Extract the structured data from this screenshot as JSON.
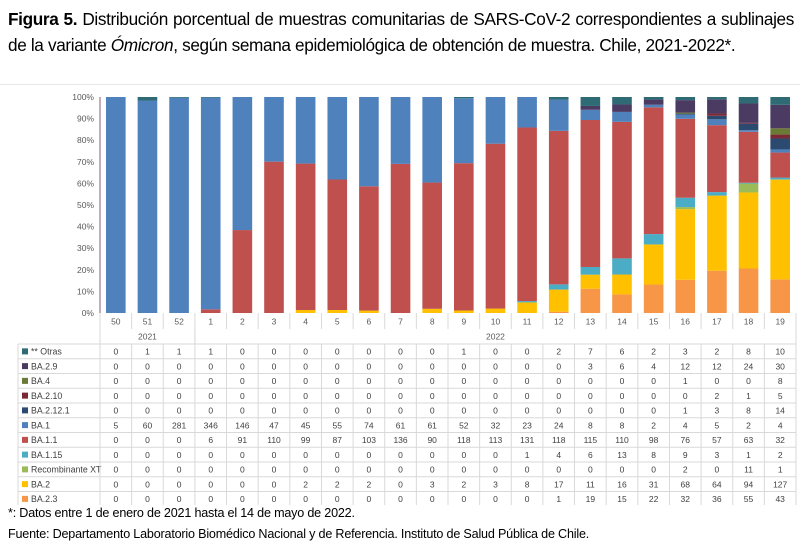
{
  "caption": {
    "label": "Figura 5.",
    "text_before_italic": " Distribución porcentual de muestras comunitarias de SARS-CoV-2 correspondientes a sublinajes de la variante ",
    "italic": "Ómicron",
    "text_after_italic": ", según semana epidemiológica de obtención de muestra. Chile, 2021-2022*."
  },
  "footnotes": {
    "note": "*: Datos entre 1 de enero de 2021 hasta el 14 de mayo de 2022.",
    "source": "Fuente: Departamento Laboratorio Biomédico Nacional y de Referencia. Instituto de Salud Pública de Chile."
  },
  "chart_data": {
    "type": "bar",
    "stacked": "percent",
    "title": "Distribución porcentual de muestras comunitarias de SARS-CoV-2 por sublinaje de Ómicron",
    "xlabel": "Semana epidemiológica",
    "ylabel": "",
    "ylim": [
      0,
      100
    ],
    "yticks": [
      "0%",
      "10%",
      "20%",
      "30%",
      "40%",
      "50%",
      "60%",
      "70%",
      "80%",
      "90%",
      "100%"
    ],
    "grid": false,
    "legend_placement": "data-table-left",
    "categories": [
      "50",
      "51",
      "52",
      "1",
      "2",
      "3",
      "4",
      "5",
      "6",
      "7",
      "8",
      "9",
      "10",
      "11",
      "12",
      "13",
      "14",
      "15",
      "16",
      "17",
      "18",
      "19"
    ],
    "year_groups": [
      {
        "label": "2021",
        "count": 3
      },
      {
        "label": "2022",
        "count": 19
      }
    ],
    "series": [
      {
        "name": "** Otras",
        "color": "#2e6b74",
        "values": [
          0,
          1,
          1,
          1,
          0,
          0,
          0,
          0,
          0,
          0,
          0,
          1,
          0,
          0,
          2,
          7,
          6,
          2,
          3,
          2,
          8,
          10
        ]
      },
      {
        "name": "BA.2.9",
        "color": "#4b3a62",
        "values": [
          0,
          0,
          0,
          0,
          0,
          0,
          0,
          0,
          0,
          0,
          0,
          0,
          0,
          0,
          0,
          3,
          6,
          4,
          12,
          12,
          24,
          30
        ]
      },
      {
        "name": "BA.4",
        "color": "#6b7a34",
        "values": [
          0,
          0,
          0,
          0,
          0,
          0,
          0,
          0,
          0,
          0,
          0,
          0,
          0,
          0,
          0,
          0,
          0,
          0,
          1,
          0,
          0,
          8
        ]
      },
      {
        "name": "BA.2.10",
        "color": "#7b2a35",
        "values": [
          0,
          0,
          0,
          0,
          0,
          0,
          0,
          0,
          0,
          0,
          0,
          0,
          0,
          0,
          0,
          0,
          0,
          0,
          0,
          2,
          1,
          5
        ]
      },
      {
        "name": "BA.2.12.1",
        "color": "#2c4a70",
        "values": [
          0,
          0,
          0,
          0,
          0,
          0,
          0,
          0,
          0,
          0,
          0,
          0,
          0,
          0,
          0,
          0,
          0,
          0,
          1,
          3,
          8,
          14
        ]
      },
      {
        "name": "BA.1",
        "color": "#4f81bd",
        "values": [
          5,
          60,
          281,
          346,
          146,
          47,
          45,
          55,
          74,
          61,
          61,
          52,
          32,
          23,
          24,
          8,
          8,
          2,
          4,
          5,
          2,
          4
        ]
      },
      {
        "name": "BA.1.1",
        "color": "#c0504d",
        "values": [
          0,
          0,
          0,
          6,
          91,
          110,
          99,
          87,
          103,
          136,
          90,
          118,
          113,
          131,
          118,
          115,
          110,
          98,
          76,
          57,
          63,
          32
        ]
      },
      {
        "name": "BA.1.15",
        "color": "#4bacc6",
        "values": [
          0,
          0,
          0,
          0,
          0,
          0,
          0,
          0,
          0,
          0,
          0,
          0,
          0,
          1,
          4,
          6,
          13,
          8,
          9,
          3,
          1,
          2
        ]
      },
      {
        "name": "Recombinante XT",
        "color": "#9bbb59",
        "values": [
          0,
          0,
          0,
          0,
          0,
          0,
          0,
          0,
          0,
          0,
          0,
          0,
          0,
          0,
          0,
          0,
          0,
          0,
          2,
          0,
          11,
          1
        ]
      },
      {
        "name": "BA.2",
        "color": "#ffc000",
        "values": [
          0,
          0,
          0,
          0,
          0,
          0,
          2,
          2,
          2,
          0,
          3,
          2,
          3,
          8,
          17,
          11,
          16,
          31,
          68,
          64,
          94,
          127
        ]
      },
      {
        "name": "BA.2.3",
        "color": "#f79646",
        "values": [
          0,
          0,
          0,
          0,
          0,
          0,
          0,
          0,
          0,
          0,
          0,
          0,
          0,
          0,
          1,
          19,
          15,
          22,
          32,
          36,
          55,
          43
        ]
      }
    ]
  }
}
